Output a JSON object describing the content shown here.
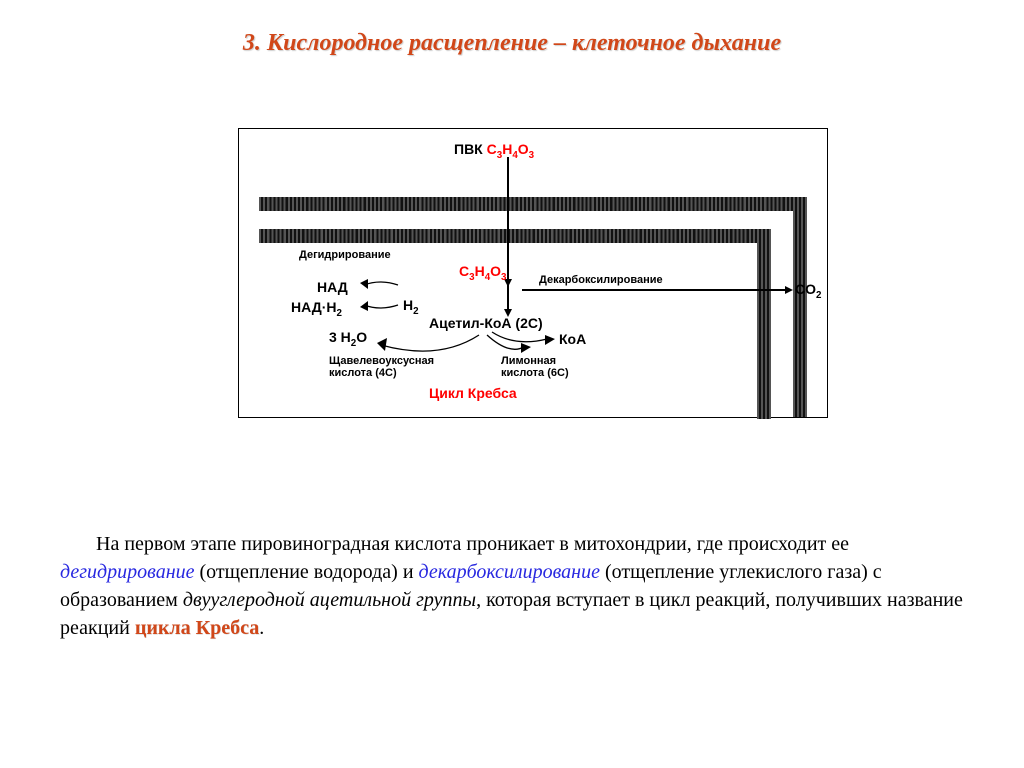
{
  "title": "3. Кислородное расщепление – клеточное дыхание",
  "diagram": {
    "pvk_label": "ПВК",
    "pvk_formula_html": "C<span class='sub'>3</span>H<span class='sub'>4</span>O<span class='sub'>3</span>",
    "c3h4o3_html": "C<span class='sub'>3</span>H<span class='sub'>4</span>O<span class='sub'>3</span>",
    "dehydr": "Дегидрирование",
    "nad": "НАД",
    "nadh2_html": "НАД·H<span class='sub'>2</span>",
    "h2_html": "H<span class='sub'>2</span>",
    "acetyl": "Ацетил-КоА (2С)",
    "koa": "КоА",
    "h2o_html": "3 H<span class='sub'>2</span>O",
    "oxalo_html": "Щавелевоуксусная<br>кислота (4С)",
    "citric_html": "Лимонная<br>кислота (6С)",
    "krebs": "Цикл Кребса",
    "decarb": "Декарбоксилирование",
    "co2_html": "CO<span class='sub'>2</span>"
  },
  "paragraph": {
    "p1a": "На первом этапе пировиноградная кислота проникает в митохондрии, где происходит ее ",
    "dehydr": "дегидрирование",
    "p1b": " (отщепление водорода) и ",
    "decarb": "декарбоксилирование",
    "p1c": " (отщепление углекислого газа) с образованием ",
    "acetyl_grp": "двууглеродной ацетильной группы",
    "p1d": ", которая вступает в цикл реакций, получивших название реакций ",
    "krebs": "цикла Кребса",
    "p1e": "."
  },
  "colors": {
    "title": "#d14719",
    "red": "#ff0000",
    "blue": "#2828e0",
    "black": "#000000",
    "bg": "#ffffff"
  }
}
